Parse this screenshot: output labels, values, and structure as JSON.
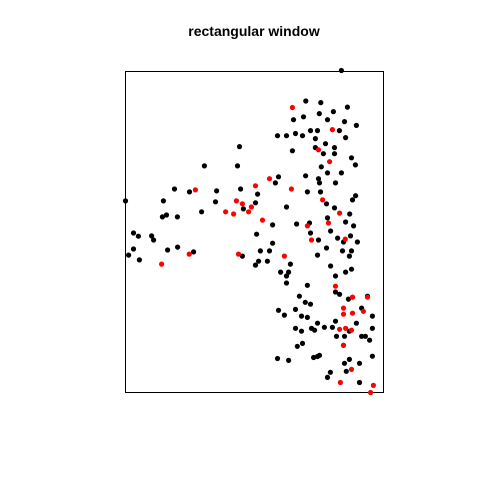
{
  "chart_data": {
    "type": "scatter",
    "title": "rectangular window",
    "xlabel": "",
    "ylabel": "",
    "xlim": [
      0,
      1
    ],
    "ylim": [
      0,
      1
    ],
    "axes_visible": false,
    "grid": false,
    "window": "rectangle",
    "colors": {
      "frame": "#000000",
      "black": "#000000",
      "red": "#ff0000"
    },
    "series": [
      {
        "color": "#000000",
        "points": [
          [
            0.837,
            1.003
          ],
          [
            0.757,
            0.903
          ],
          [
            0.699,
            0.908
          ],
          [
            0.86,
            0.889
          ],
          [
            0.806,
            0.875
          ],
          [
            0.751,
            0.869
          ],
          [
            0.651,
            0.85
          ],
          [
            0.69,
            0.859
          ],
          [
            0.783,
            0.85
          ],
          [
            0.849,
            0.844
          ],
          [
            0.895,
            0.832
          ],
          [
            0.744,
            0.816
          ],
          [
            0.717,
            0.816
          ],
          [
            0.829,
            0.816
          ],
          [
            0.589,
            0.8
          ],
          [
            0.624,
            0.8
          ],
          [
            0.659,
            0.807
          ],
          [
            0.686,
            0.8
          ],
          [
            0.736,
            0.791
          ],
          [
            0.853,
            0.794
          ],
          [
            0.775,
            0.775
          ],
          [
            0.736,
            0.763
          ],
          [
            0.81,
            0.763
          ],
          [
            0.767,
            0.744
          ],
          [
            0.647,
            0.753
          ],
          [
            0.81,
            0.744
          ],
          [
            0.876,
            0.731
          ],
          [
            0.891,
            0.709
          ],
          [
            0.442,
            0.766
          ],
          [
            0.306,
            0.706
          ],
          [
            0.434,
            0.706
          ],
          [
            0.759,
            0.703
          ],
          [
            0.837,
            0.684
          ],
          [
            0.783,
            0.684
          ],
          [
            0.698,
            0.675
          ],
          [
            0.593,
            0.672
          ],
          [
            0.748,
            0.666
          ],
          [
            0.581,
            0.653
          ],
          [
            0.814,
            0.653
          ],
          [
            0.752,
            0.653
          ],
          [
            0.756,
            0.625
          ],
          [
            0.705,
            0.625
          ],
          [
            0.892,
            0.613
          ],
          [
            0.0,
            0.597
          ],
          [
            0.19,
            0.634
          ],
          [
            0.248,
            0.625
          ],
          [
            0.353,
            0.628
          ],
          [
            0.446,
            0.634
          ],
          [
            0.512,
            0.618
          ],
          [
            0.504,
            0.591
          ],
          [
            0.624,
            0.578
          ],
          [
            0.779,
            0.588
          ],
          [
            0.81,
            0.575
          ],
          [
            0.869,
            0.556
          ],
          [
            0.349,
            0.594
          ],
          [
            0.147,
            0.597
          ],
          [
            0.159,
            0.553
          ],
          [
            0.295,
            0.563
          ],
          [
            0.457,
            0.572
          ],
          [
            0.201,
            0.547
          ],
          [
            0.143,
            0.547
          ],
          [
            0.88,
            0.6
          ],
          [
            0.783,
            0.544
          ],
          [
            0.713,
            0.528
          ],
          [
            0.663,
            0.525
          ],
          [
            0.57,
            0.522
          ],
          [
            0.853,
            0.531
          ],
          [
            0.884,
            0.519
          ],
          [
            0.031,
            0.497
          ],
          [
            0.717,
            0.497
          ],
          [
            0.795,
            0.503
          ],
          [
            0.508,
            0.493
          ],
          [
            0.101,
            0.488
          ],
          [
            0.05,
            0.487
          ],
          [
            0.872,
            0.488
          ],
          [
            0.899,
            0.469
          ],
          [
            0.57,
            0.465
          ],
          [
            0.558,
            0.441
          ],
          [
            0.822,
            0.481
          ],
          [
            0.845,
            0.469
          ],
          [
            0.748,
            0.475
          ],
          [
            0.779,
            0.45
          ],
          [
            0.109,
            0.475
          ],
          [
            0.163,
            0.444
          ],
          [
            0.841,
            0.441
          ],
          [
            0.868,
            0.425
          ],
          [
            0.876,
            0.441
          ],
          [
            0.202,
            0.453
          ],
          [
            0.453,
            0.425
          ],
          [
            0.264,
            0.438
          ],
          [
            0.012,
            0.428
          ],
          [
            0.031,
            0.447
          ],
          [
            0.523,
            0.441
          ],
          [
            0.054,
            0.413
          ],
          [
            0.744,
            0.428
          ],
          [
            0.516,
            0.409
          ],
          [
            0.55,
            0.409
          ],
          [
            0.504,
            0.397
          ],
          [
            0.601,
            0.375
          ],
          [
            0.639,
            0.4
          ],
          [
            0.632,
            0.375
          ],
          [
            0.624,
            0.363
          ],
          [
            0.795,
            0.394
          ],
          [
            0.853,
            0.375
          ],
          [
            0.814,
            0.363
          ],
          [
            0.624,
            0.341
          ],
          [
            0.876,
            0.384
          ],
          [
            0.705,
            0.334
          ],
          [
            0.83,
            0.306
          ],
          [
            0.674,
            0.3
          ],
          [
            0.697,
            0.281
          ],
          [
            0.717,
            0.275
          ],
          [
            0.593,
            0.256
          ],
          [
            0.659,
            0.259
          ],
          [
            0.895,
            0.216
          ],
          [
            0.814,
            0.222
          ],
          [
            0.682,
            0.238
          ],
          [
            0.705,
            0.234
          ],
          [
            0.616,
            0.241
          ],
          [
            0.744,
            0.216
          ],
          [
            0.802,
            0.203
          ],
          [
            0.659,
            0.2
          ],
          [
            0.771,
            0.203
          ],
          [
            0.868,
            0.191
          ],
          [
            0.733,
            0.194
          ],
          [
            0.721,
            0.2
          ],
          [
            0.682,
            0.191
          ],
          [
            0.818,
            0.175
          ],
          [
            0.849,
            0.175
          ],
          [
            0.915,
            0.175
          ],
          [
            0.845,
            0.147
          ],
          [
            0.666,
            0.144
          ],
          [
            0.686,
            0.153
          ],
          [
            0.744,
            0.112
          ],
          [
            0.868,
            0.103
          ],
          [
            0.752,
            0.116
          ],
          [
            0.93,
            0.175
          ],
          [
            0.729,
            0.109
          ],
          [
            0.957,
            0.2
          ],
          [
            0.957,
            0.238
          ],
          [
            0.915,
            0.263
          ],
          [
            0.938,
            0.3
          ],
          [
            0.864,
            0.291
          ],
          [
            0.814,
            0.313
          ],
          [
            0.632,
            0.1
          ],
          [
            0.589,
            0.106
          ],
          [
            0.907,
            0.091
          ],
          [
            0.849,
            0.091
          ],
          [
            0.856,
            0.066
          ],
          [
            0.794,
            0.063
          ],
          [
            0.783,
            0.047
          ],
          [
            0.907,
            0.031
          ],
          [
            0.957,
            0.113
          ],
          [
            0.946,
            0.163
          ]
        ]
      },
      {
        "color": "#ff0000",
        "points": [
          [
            0.647,
            0.888
          ],
          [
            0.802,
            0.819
          ],
          [
            0.748,
            0.756
          ],
          [
            0.791,
            0.719
          ],
          [
            0.558,
            0.666
          ],
          [
            0.504,
            0.644
          ],
          [
            0.643,
            0.634
          ],
          [
            0.271,
            0.631
          ],
          [
            0.764,
            0.6
          ],
          [
            0.43,
            0.597
          ],
          [
            0.453,
            0.588
          ],
          [
            0.488,
            0.578
          ],
          [
            0.83,
            0.559
          ],
          [
            0.388,
            0.563
          ],
          [
            0.419,
            0.556
          ],
          [
            0.477,
            0.563
          ],
          [
            0.531,
            0.537
          ],
          [
            0.787,
            0.528
          ],
          [
            0.705,
            0.519
          ],
          [
            0.852,
            0.478
          ],
          [
            0.721,
            0.475
          ],
          [
            0.616,
            0.425
          ],
          [
            0.438,
            0.431
          ],
          [
            0.247,
            0.431
          ],
          [
            0.14,
            0.4
          ],
          [
            0.88,
            0.297
          ],
          [
            0.814,
            0.331
          ],
          [
            0.938,
            0.297
          ],
          [
            0.88,
            0.297
          ],
          [
            0.88,
            0.247
          ],
          [
            0.845,
            0.263
          ],
          [
            0.853,
            0.2
          ],
          [
            0.922,
            0.253
          ],
          [
            0.845,
            0.244
          ],
          [
            0.83,
            0.197
          ],
          [
            0.876,
            0.194
          ],
          [
            0.845,
            0.147
          ],
          [
            0.876,
            0.072
          ],
          [
            0.833,
            0.031
          ],
          [
            0.961,
            0.022
          ],
          [
            0.95,
            0.0
          ]
        ]
      }
    ]
  }
}
